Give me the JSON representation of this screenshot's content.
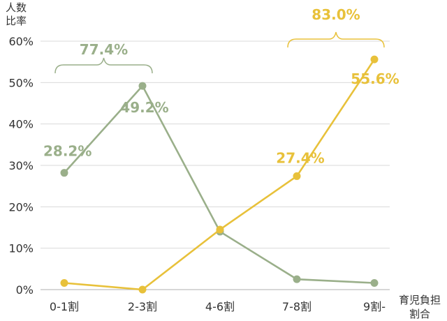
{
  "chart_data": {
    "type": "line",
    "categories": [
      "0-1割",
      "2-3割",
      "4-6割",
      "7-8割",
      "9割-"
    ],
    "ylim": [
      0,
      60
    ],
    "yticks": [
      "0%",
      "10%",
      "20%",
      "30%",
      "40%",
      "50%",
      "60%"
    ],
    "ylabel_lines": [
      "人数",
      "比率"
    ],
    "xlabel_lines": [
      "育児負担",
      "割合"
    ],
    "grid": true,
    "colors": {
      "green": "#9aaf8a",
      "yellow": "#e8c13a"
    },
    "series": [
      {
        "color": "#9aaf8a",
        "values": [
          28.2,
          49.2,
          14.0,
          2.5,
          1.6
        ],
        "labels": [
          {
            "index": 0,
            "text": "28.2%"
          },
          {
            "index": 1,
            "text": "49.2%"
          }
        ]
      },
      {
        "color": "#e8c13a",
        "values": [
          1.6,
          0.0,
          14.5,
          27.4,
          55.6
        ],
        "labels": [
          {
            "index": 3,
            "text": "27.4%"
          },
          {
            "index": 4,
            "text": "55.6%"
          }
        ]
      }
    ],
    "annotations": [
      {
        "text": "77.4%",
        "from": 0,
        "to": 1,
        "color": "#9aaf8a"
      },
      {
        "text": "83.0%",
        "from": 3,
        "to": 4,
        "color": "#e8c13a"
      }
    ]
  }
}
